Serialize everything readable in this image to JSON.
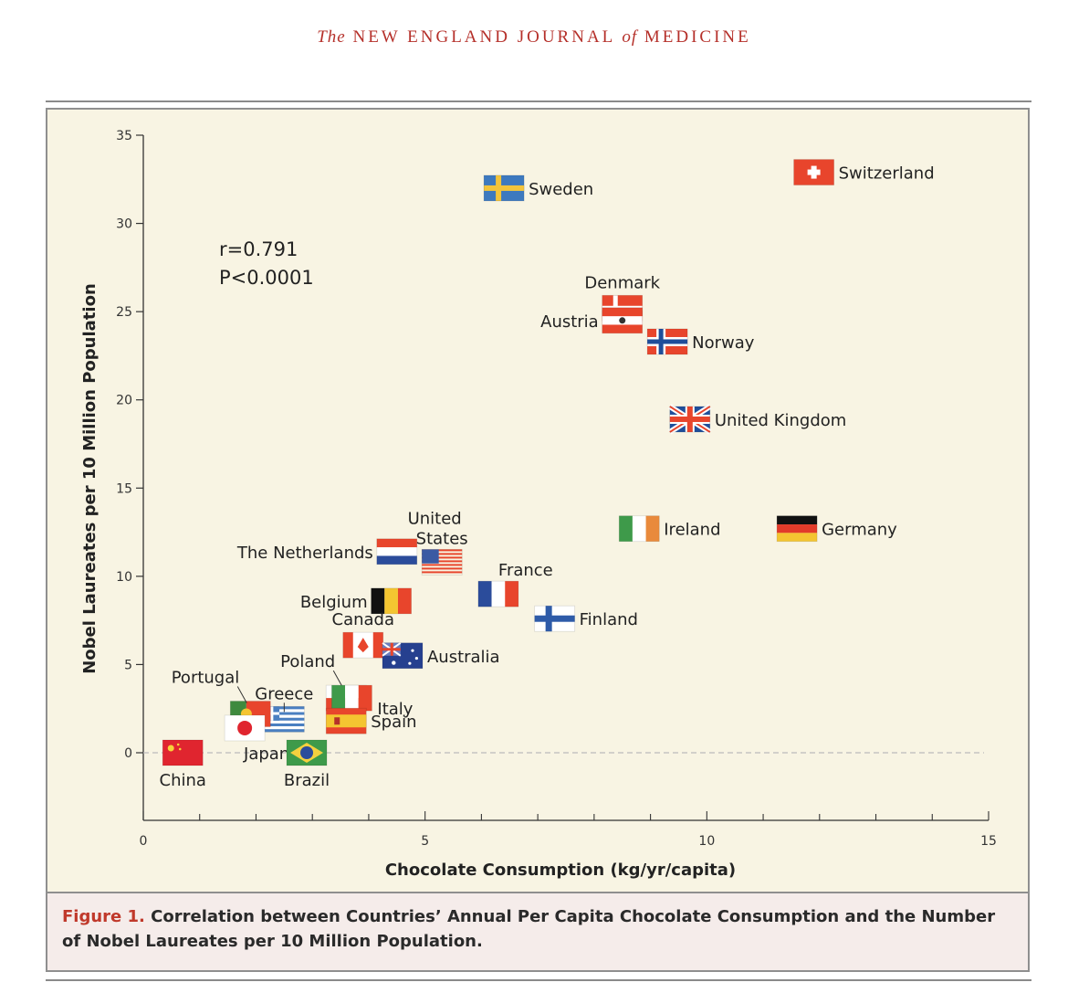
{
  "header": {
    "the": "The",
    "title": "NEW ENGLAND JOURNAL",
    "of": "of",
    "title2": "MEDICINE"
  },
  "caption": {
    "figure": "Figure 1.",
    "text": " Correlation between Countries’ Annual Per Capita Chocolate Consumption and the Number of Nobel Laureates per 10 Million Population."
  },
  "stats": {
    "r": "r=0.791",
    "p": "P<0.0001"
  },
  "colors": {
    "flag_red": "#e8452c",
    "flag_blue": "#1f4e9a",
    "panel_bg": "#f8f4e3",
    "caption_bg": "#f5ecea"
  },
  "chart_data": {
    "type": "scatter",
    "xlabel": "Chocolate Consumption (kg/yr/capita)",
    "ylabel": "Nobel Laureates per 10 Million Population",
    "xlim": [
      0,
      15
    ],
    "ylim": [
      0,
      35
    ],
    "xticks_labeled": [
      0,
      5,
      10,
      15
    ],
    "yticks": [
      0,
      5,
      10,
      15,
      20,
      25,
      30,
      35
    ],
    "zero_reference_line": "dashed",
    "points": [
      {
        "country": "Switzerland",
        "x": 11.9,
        "y": 32.9,
        "flag": "switzerland"
      },
      {
        "country": "Sweden",
        "x": 6.4,
        "y": 32.0,
        "flag": "sweden"
      },
      {
        "country": "Denmark",
        "x": 8.5,
        "y": 25.2,
        "flag": "denmark"
      },
      {
        "country": "Austria",
        "x": 8.5,
        "y": 24.5,
        "flag": "austria"
      },
      {
        "country": "Norway",
        "x": 9.3,
        "y": 23.3,
        "flag": "norway"
      },
      {
        "country": "United Kingdom",
        "x": 9.7,
        "y": 18.9,
        "flag": "uk"
      },
      {
        "country": "Ireland",
        "x": 8.8,
        "y": 12.7,
        "flag": "ireland"
      },
      {
        "country": "Germany",
        "x": 11.6,
        "y": 12.7,
        "flag": "germany"
      },
      {
        "country": "United States",
        "x": 5.3,
        "y": 10.8,
        "flag": "usa"
      },
      {
        "country": "The Netherlands",
        "x": 4.5,
        "y": 11.4,
        "flag": "netherlands"
      },
      {
        "country": "France",
        "x": 6.3,
        "y": 9.0,
        "flag": "france"
      },
      {
        "country": "Finland",
        "x": 7.3,
        "y": 7.6,
        "flag": "finland"
      },
      {
        "country": "Belgium",
        "x": 4.4,
        "y": 8.6,
        "flag": "belgium"
      },
      {
        "country": "Canada",
        "x": 3.9,
        "y": 6.1,
        "flag": "canada"
      },
      {
        "country": "Australia",
        "x": 4.6,
        "y": 5.5,
        "flag": "australia"
      },
      {
        "country": "Poland",
        "x": 3.6,
        "y": 3.1,
        "flag": "poland"
      },
      {
        "country": "Italy",
        "x": 3.7,
        "y": 3.1,
        "flag": "italy"
      },
      {
        "country": "Greece",
        "x": 2.5,
        "y": 1.9,
        "flag": "greece"
      },
      {
        "country": "Portugal",
        "x": 1.9,
        "y": 2.2,
        "flag": "portugal"
      },
      {
        "country": "Spain",
        "x": 3.6,
        "y": 1.8,
        "flag": "spain"
      },
      {
        "country": "Japan",
        "x": 1.8,
        "y": 1.4,
        "flag": "japan"
      },
      {
        "country": "Brazil",
        "x": 2.9,
        "y": 0.0,
        "flag": "brazil"
      },
      {
        "country": "China",
        "x": 0.7,
        "y": 0.0,
        "flag": "china"
      }
    ]
  }
}
